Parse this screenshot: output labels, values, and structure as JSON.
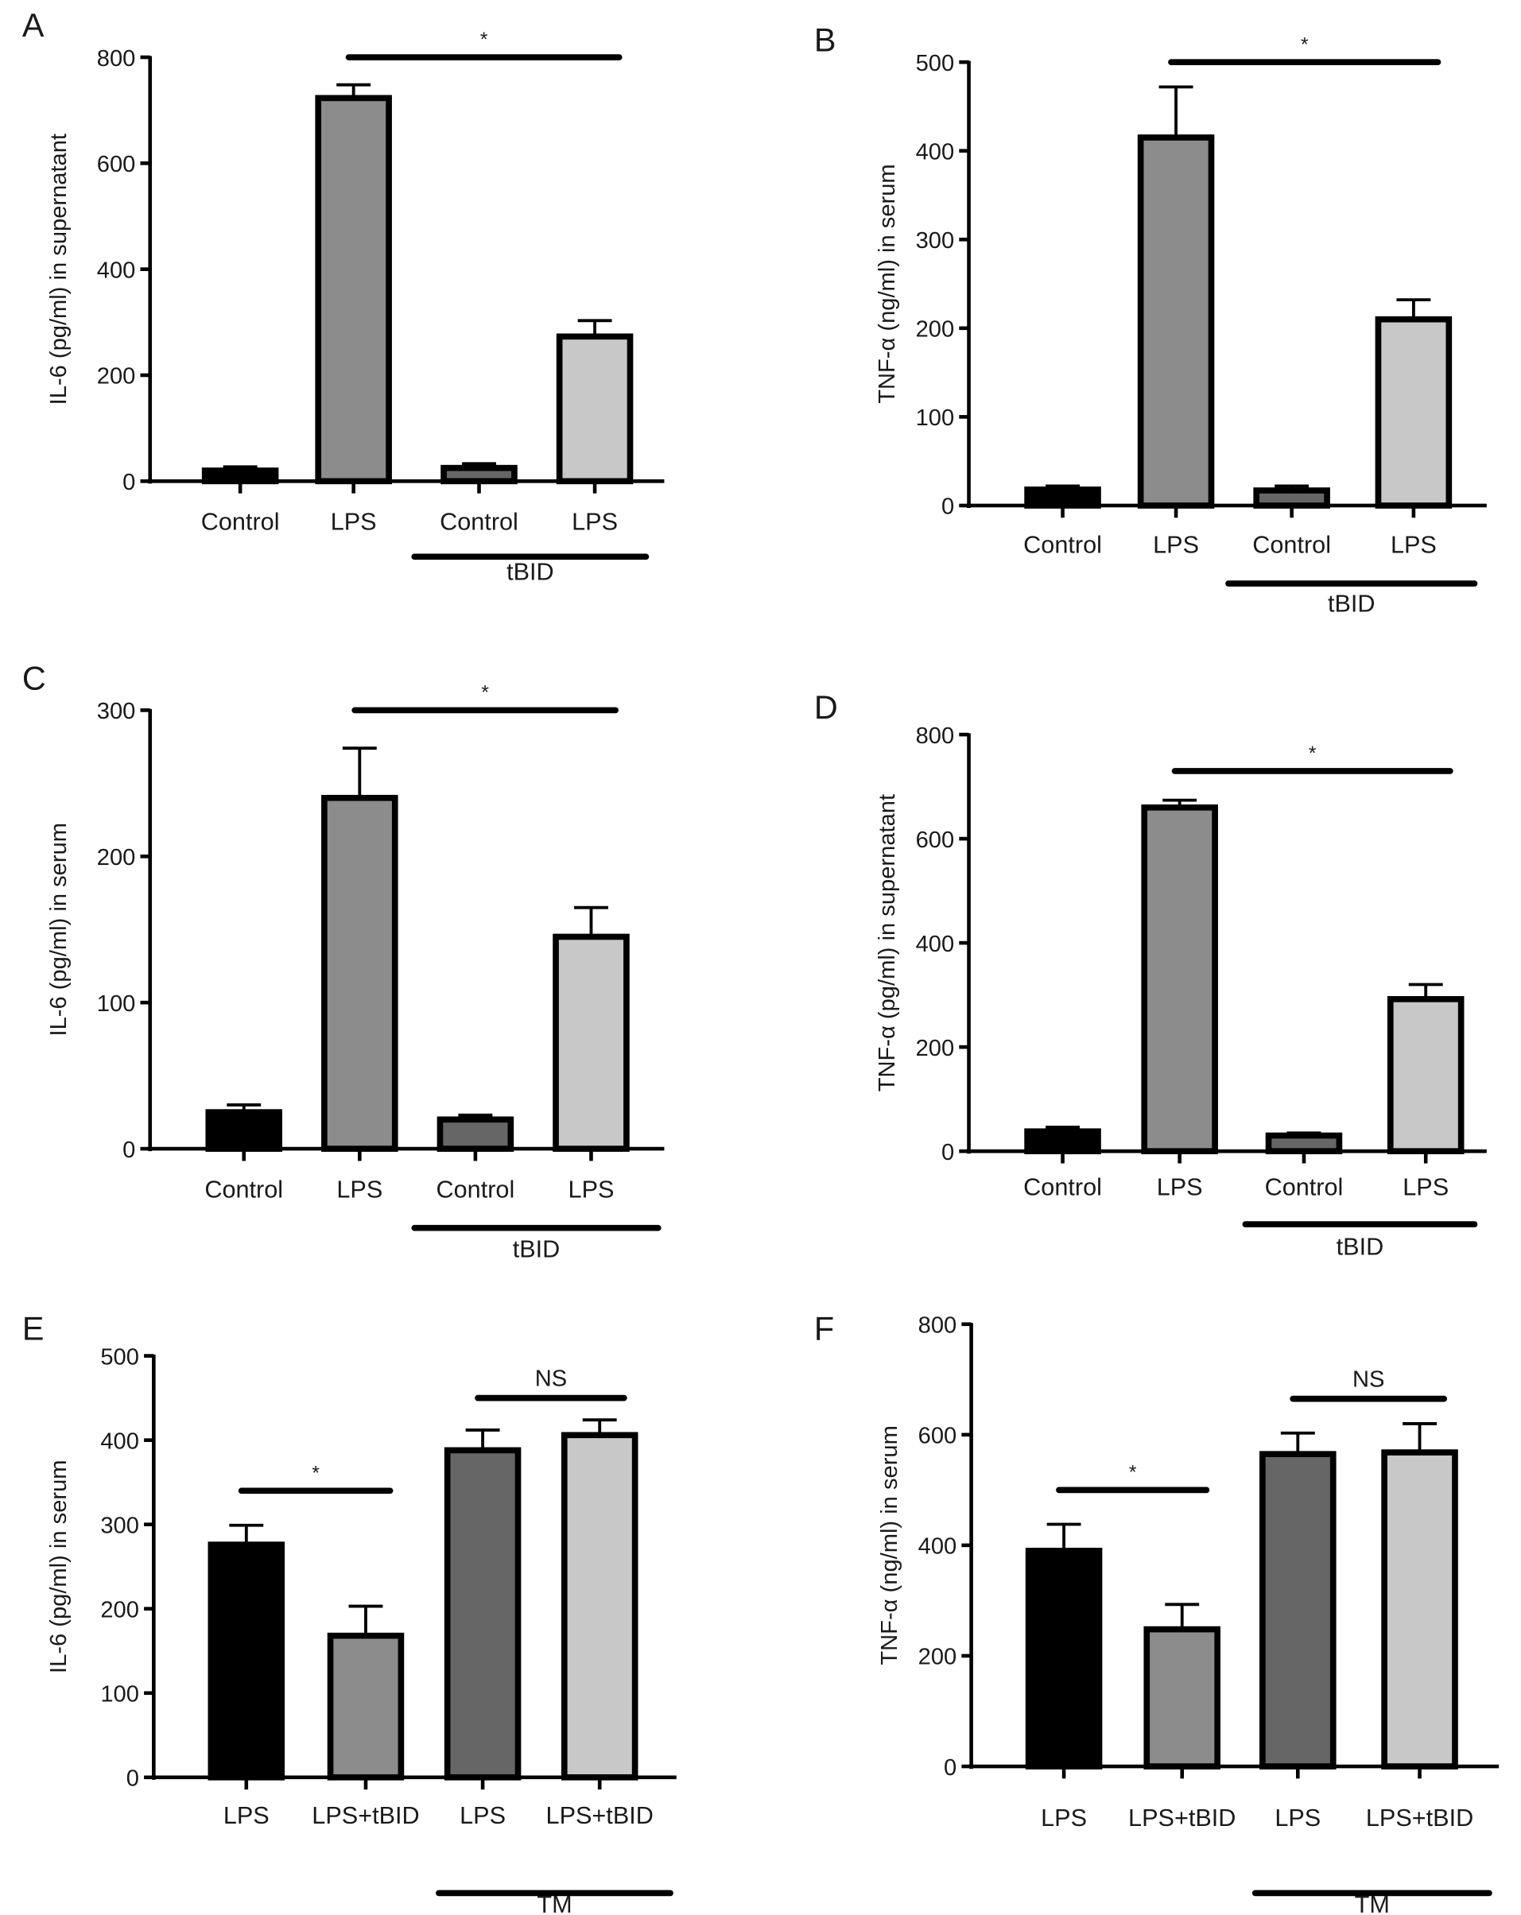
{
  "chart_data": [
    {
      "panel": "A",
      "type": "bar",
      "ylabel": "IL-6 (pg/ml) in supernatant",
      "ylim": [
        0,
        800
      ],
      "yticks": [
        0,
        200,
        400,
        600,
        800
      ],
      "categories": [
        "Control",
        "LPS",
        "Control",
        "LPS"
      ],
      "values": [
        20,
        723,
        25,
        273
      ],
      "errors": [
        7,
        25,
        8,
        30
      ],
      "colors": [
        "#000000",
        "#8c8c8c",
        "#666666",
        "#c8c8c8"
      ],
      "group": {
        "label": "tBID",
        "from": 2,
        "to": 3
      },
      "significance": [
        {
          "label": "*",
          "from": 1,
          "to": 3,
          "y": 800
        }
      ]
    },
    {
      "panel": "B",
      "type": "bar",
      "ylabel": "TNF-α (ng/ml) in serum",
      "ylim": [
        0,
        500
      ],
      "yticks": [
        0,
        100,
        200,
        300,
        400,
        500
      ],
      "categories": [
        "Control",
        "LPS",
        "Control",
        "LPS"
      ],
      "values": [
        18,
        415,
        17,
        210
      ],
      "errors": [
        4,
        57,
        5,
        22
      ],
      "colors": [
        "#000000",
        "#8c8c8c",
        "#666666",
        "#c8c8c8"
      ],
      "group": {
        "label": "tBID",
        "from": 2,
        "to": 3
      },
      "significance": [
        {
          "label": "*",
          "from": 1,
          "to": 3,
          "y": 500
        }
      ]
    },
    {
      "panel": "C",
      "type": "bar",
      "ylabel": "IL-6 (pg/ml) in serum",
      "ylim": [
        0,
        300
      ],
      "yticks": [
        0,
        100,
        200,
        300
      ],
      "categories": [
        "Control",
        "LPS",
        "Control",
        "LPS"
      ],
      "values": [
        25,
        240,
        20,
        145
      ],
      "errors": [
        5,
        34,
        3,
        20
      ],
      "colors": [
        "#000000",
        "#8c8c8c",
        "#666666",
        "#c8c8c8"
      ],
      "group": {
        "label": "tBID",
        "from": 2,
        "to": 3
      },
      "significance": [
        {
          "label": "*",
          "from": 1,
          "to": 3,
          "y": 300
        }
      ]
    },
    {
      "panel": "D",
      "type": "bar",
      "ylabel": "TNF-α (pg/ml) in supernatant",
      "ylim": [
        0,
        800
      ],
      "yticks": [
        0,
        200,
        400,
        600,
        800
      ],
      "categories": [
        "Control",
        "LPS",
        "Control",
        "LPS"
      ],
      "values": [
        38,
        660,
        30,
        292
      ],
      "errors": [
        8,
        14,
        5,
        28
      ],
      "colors": [
        "#000000",
        "#8c8c8c",
        "#666666",
        "#c8c8c8"
      ],
      "group": {
        "label": "tBID",
        "from": 2,
        "to": 3
      },
      "significance": [
        {
          "label": "*",
          "from": 1,
          "to": 3,
          "y": 730
        }
      ]
    },
    {
      "panel": "E",
      "type": "bar",
      "ylabel": "IL-6 (pg/ml) in serum",
      "ylim": [
        0,
        500
      ],
      "yticks": [
        0,
        100,
        200,
        300,
        400,
        500
      ],
      "categories": [
        "LPS",
        "LPS+tBID",
        "LPS",
        "LPS+tBID"
      ],
      "values": [
        276,
        168,
        388,
        406
      ],
      "errors": [
        23,
        35,
        24,
        18
      ],
      "colors": [
        "#000000",
        "#8c8c8c",
        "#666666",
        "#c8c8c8"
      ],
      "group": {
        "label": "TM",
        "from": 2,
        "to": 3
      },
      "significance": [
        {
          "label": "*",
          "from": 0,
          "to": 1,
          "y": 340
        },
        {
          "label": "NS",
          "from": 2,
          "to": 3,
          "y": 450
        }
      ]
    },
    {
      "panel": "F",
      "type": "bar",
      "ylabel": "TNF-α (ng/ml) in serum",
      "ylim": [
        0,
        800
      ],
      "yticks": [
        0,
        200,
        400,
        600,
        800
      ],
      "categories": [
        "LPS",
        "LPS+tBID",
        "LPS",
        "LPS+tBID"
      ],
      "values": [
        390,
        248,
        565,
        568
      ],
      "errors": [
        48,
        45,
        38,
        52
      ],
      "colors": [
        "#000000",
        "#8c8c8c",
        "#666666",
        "#c8c8c8"
      ],
      "group": {
        "label": "TM",
        "from": 2,
        "to": 3
      },
      "significance": [
        {
          "label": "*",
          "from": 0,
          "to": 1,
          "y": 500
        },
        {
          "label": "NS",
          "from": 2,
          "to": 3,
          "y": 665
        }
      ]
    }
  ]
}
